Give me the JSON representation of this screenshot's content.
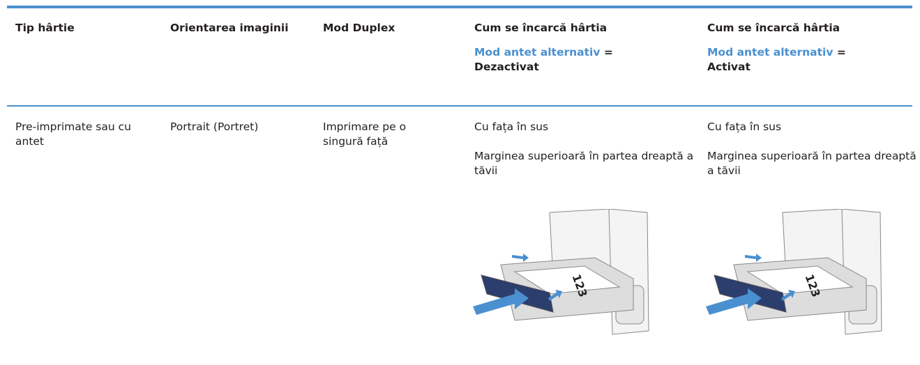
{
  "table": {
    "header": [
      {
        "text": "Tip hârtie"
      },
      {
        "text": "Orientarea imaginii"
      },
      {
        "text": "Mod Duplex"
      },
      {
        "text": "Cum se încarcă hârtia",
        "setting": "Mod antet alternativ",
        "operator": "=",
        "state": "Dezactivat"
      },
      {
        "text": "Cum se încarcă hârtia",
        "setting": "Mod antet alternativ",
        "operator": "=",
        "state": "Activat"
      }
    ],
    "rows": [
      [
        "Pre-imprimate sau cu antet",
        "Portrait (Portret)",
        "Imprimare pe o singură față",
        {
          "lines": [
            "Cu fața în sus",
            "Marginea superioară în partea dreaptă a tăvii"
          ],
          "image_text": "123"
        },
        {
          "lines": [
            "Cu fața în sus",
            "Marginea superioară în partea dreaptă a tăvii"
          ],
          "image_text": "123"
        }
      ]
    ]
  }
}
